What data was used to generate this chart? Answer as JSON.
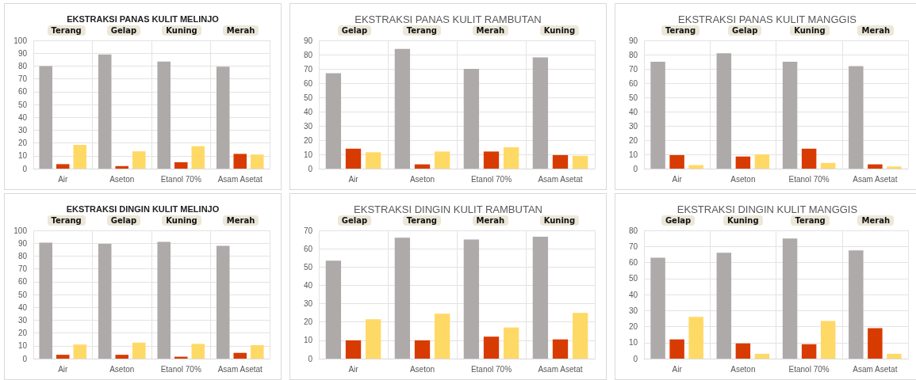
{
  "chart_data": [
    {
      "type": "bar",
      "title": "EKSTRAKSI PANAS KULIT MELINJO",
      "categories": [
        "Air",
        "Aseton",
        "Etanol 70%",
        "Asam Asetat"
      ],
      "series": [
        {
          "color": "#aeaaaa",
          "values": [
            80,
            89,
            83.5,
            79.5
          ]
        },
        {
          "color": "#d83b01",
          "values": [
            3.5,
            2,
            5,
            11.5
          ]
        },
        {
          "color": "#ffd966",
          "values": [
            18.5,
            13.5,
            17.5,
            11
          ]
        }
      ],
      "ylim": [
        0,
        100
      ],
      "yticks": [
        0,
        10,
        20,
        30,
        40,
        50,
        60,
        70,
        80,
        90,
        100
      ],
      "grid": true,
      "annotations": [
        "Terang",
        "Gelap",
        "Kuning",
        "Merah"
      ]
    },
    {
      "type": "bar",
      "title": "EKSTRAKSI PANAS KULIT RAMBUTAN",
      "categories": [
        "Air",
        "Aseton",
        "Etanol 70%",
        "Asam Asetat"
      ],
      "series": [
        {
          "color": "#aeaaaa",
          "values": [
            67,
            84,
            70,
            78
          ]
        },
        {
          "color": "#d83b01",
          "values": [
            14,
            3,
            12,
            9.5
          ]
        },
        {
          "color": "#ffd966",
          "values": [
            11.5,
            12,
            15,
            9
          ]
        }
      ],
      "ylim": [
        0,
        90
      ],
      "yticks": [
        0,
        10,
        20,
        30,
        40,
        50,
        60,
        70,
        80,
        90
      ],
      "grid": true,
      "annotations": [
        "Gelap",
        "Terang",
        "Merah",
        "Kuning"
      ]
    },
    {
      "type": "bar",
      "title": "EKSTRAKSI PANAS KULIT MANGGIS",
      "categories": [
        "Air",
        "Aseton",
        "Etanol 70%",
        "Asam Asetat"
      ],
      "series": [
        {
          "color": "#aeaaaa",
          "values": [
            75,
            81,
            75,
            72
          ]
        },
        {
          "color": "#d83b01",
          "values": [
            9.5,
            8.5,
            14,
            3
          ]
        },
        {
          "color": "#ffd966",
          "values": [
            2.5,
            10,
            4,
            1.5
          ]
        }
      ],
      "ylim": [
        0,
        90
      ],
      "yticks": [
        0,
        10,
        20,
        30,
        40,
        50,
        60,
        70,
        80,
        90
      ],
      "grid": true,
      "annotations": [
        "Terang",
        "Gelap",
        "Kuning",
        "Merah"
      ]
    },
    {
      "type": "bar",
      "title": "EKSTRAKSI DINGIN KULIT MELINJO",
      "categories": [
        "Air",
        "Aseton",
        "Etanol 70%",
        "Asam Asetat"
      ],
      "series": [
        {
          "color": "#aeaaaa",
          "values": [
            90.5,
            89.5,
            91,
            88
          ]
        },
        {
          "color": "#d83b01",
          "values": [
            3,
            3,
            1.5,
            4.5
          ]
        },
        {
          "color": "#ffd966",
          "values": [
            11,
            12.5,
            11.5,
            10.5
          ]
        }
      ],
      "ylim": [
        0,
        100
      ],
      "yticks": [
        0,
        10,
        20,
        30,
        40,
        50,
        60,
        70,
        80,
        90,
        100
      ],
      "grid": true,
      "annotations": [
        "Terang",
        "Gelap",
        "Kuning",
        "Merah"
      ]
    },
    {
      "type": "bar",
      "title": "EKSTRAKSI DINGIN KULIT RAMBUTAN",
      "categories": [
        "Air",
        "Aseton",
        "Etanol 70%",
        "Asam Asetat"
      ],
      "series": [
        {
          "color": "#aeaaaa",
          "values": [
            53.5,
            66,
            65,
            66.5
          ]
        },
        {
          "color": "#d83b01",
          "values": [
            10,
            10,
            12,
            10.5
          ]
        },
        {
          "color": "#ffd966",
          "values": [
            21.5,
            24.5,
            17,
            25
          ]
        }
      ],
      "ylim": [
        0,
        70
      ],
      "yticks": [
        0,
        10,
        20,
        30,
        40,
        50,
        60,
        70
      ],
      "grid": true,
      "annotations": [
        "Gelap",
        "Terang",
        "Merah",
        "Kuning"
      ]
    },
    {
      "type": "bar",
      "title": "EKSTRAKSI DINGIN KULIT MANGGIS",
      "categories": [
        "Air",
        "Aseton",
        "Etanol 70%",
        "Asam Asetat"
      ],
      "series": [
        {
          "color": "#aeaaaa",
          "values": [
            63,
            66,
            75,
            67.5
          ]
        },
        {
          "color": "#d83b01",
          "values": [
            12,
            9.5,
            9,
            19
          ]
        },
        {
          "color": "#ffd966",
          "values": [
            26,
            3,
            23.5,
            3
          ]
        }
      ],
      "ylim": [
        0,
        80
      ],
      "yticks": [
        0,
        10,
        20,
        30,
        40,
        50,
        60,
        70,
        80
      ],
      "grid": true,
      "annotations": [
        "Gelap",
        "Kuning",
        "Terang",
        "Merah"
      ]
    }
  ]
}
